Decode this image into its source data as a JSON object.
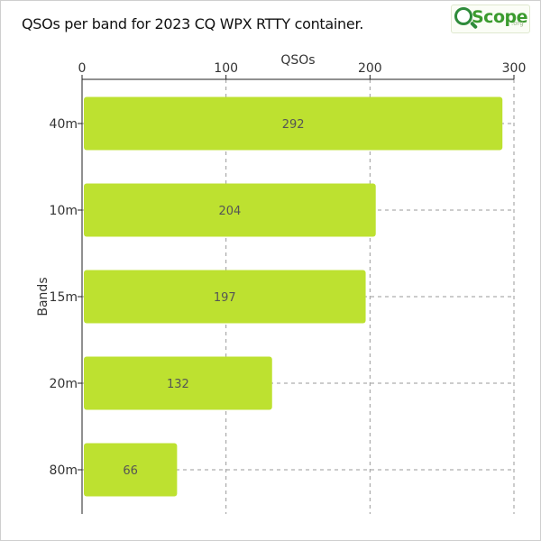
{
  "title": "QSOs per band for 2023 CQ WPX RTTY container.",
  "logo": {
    "word": "Scope",
    "suffix": ".org",
    "icon": "magnifier-q-icon"
  },
  "colors": {
    "bar": "#bde130",
    "grid": "#9a9a9a",
    "axis": "#222222"
  },
  "chart_data": {
    "type": "bar",
    "orientation": "horizontal",
    "categories": [
      "40m",
      "10m",
      "15m",
      "20m",
      "80m"
    ],
    "values": [
      292,
      204,
      197,
      132,
      66
    ],
    "data_labels": [
      "292",
      "204",
      "197",
      "132",
      "66"
    ],
    "xlabel": "QSOs",
    "ylabel": "Bands",
    "x_axis_position": "top",
    "xlim": [
      0,
      300
    ],
    "xticks": [
      0,
      100,
      200,
      300
    ],
    "xtick_labels": [
      "0",
      "100",
      "200",
      "300"
    ],
    "grid": true,
    "grid_style": "dashed"
  }
}
